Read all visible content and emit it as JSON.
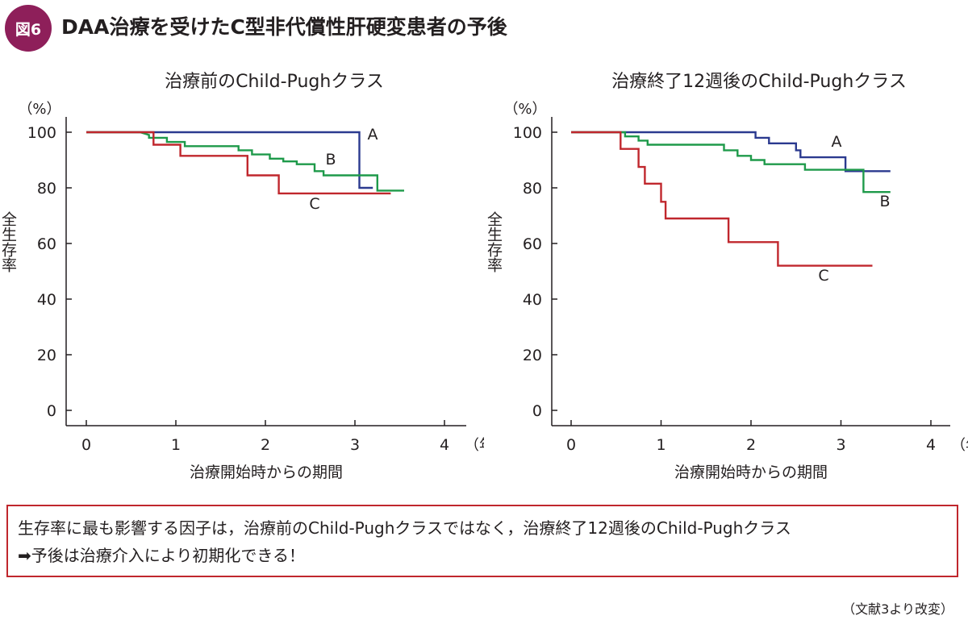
{
  "figure": {
    "badge": "図6",
    "title": "DAA治療を受けたC型非代償性肝硬変患者の予後"
  },
  "note": {
    "line1": "生存率に最も影響する因子は，治療前のChild-Pughクラスではなく，治療終了12週後のChild-Pughクラス",
    "line2": "➡予後は治療介入により初期化できる！"
  },
  "source": "（文献3より改変）",
  "colors": {
    "A": "#2b3a8f",
    "B": "#1e9a4a",
    "C": "#c0272d",
    "badge": "#8e1f5a"
  },
  "chart_data": [
    {
      "type": "line",
      "title": "治療前のChild-Pughクラス",
      "ylabel": "全生存率",
      "yunit": "（%）",
      "xlabel": "治療開始時からの期間",
      "xunit": "（年）",
      "xlim": [
        0,
        4
      ],
      "ylim": [
        0,
        100
      ],
      "xticks": [
        "0",
        "1",
        "2",
        "3",
        "4"
      ],
      "yticks": [
        "0",
        "20",
        "40",
        "60",
        "80",
        "100"
      ],
      "series": [
        {
          "name": "A",
          "x": [
            0,
            3.05,
            3.05,
            3.2
          ],
          "y": [
            100,
            100,
            80,
            80
          ]
        },
        {
          "name": "B",
          "x": [
            0,
            0.6,
            0.7,
            0.7,
            0.9,
            0.9,
            1.1,
            1.1,
            1.7,
            1.7,
            1.85,
            1.85,
            2.05,
            2.05,
            2.2,
            2.2,
            2.35,
            2.35,
            2.55,
            2.55,
            2.65,
            2.65,
            3.25,
            3.25,
            3.55
          ],
          "y": [
            100,
            100,
            99,
            98,
            98,
            96.5,
            96.5,
            95,
            95,
            93.5,
            93.5,
            92,
            92,
            90.5,
            90.5,
            89.5,
            89.5,
            88.5,
            88.5,
            86,
            86,
            84.5,
            84.5,
            79,
            79
          ]
        },
        {
          "name": "C",
          "x": [
            0,
            0.75,
            0.75,
            1.05,
            1.05,
            1.8,
            1.8,
            2.15,
            2.15,
            3.4
          ],
          "y": [
            100,
            100,
            95.5,
            95.5,
            91.5,
            91.5,
            84.5,
            84.5,
            78,
            78
          ]
        }
      ]
    },
    {
      "type": "line",
      "title": "治療終了12週後のChild-Pughクラス",
      "ylabel": "全生存率",
      "yunit": "（%）",
      "xlabel": "治療開始時からの期間",
      "xunit": "（年）",
      "xlim": [
        0,
        4
      ],
      "ylim": [
        0,
        100
      ],
      "xticks": [
        "0",
        "1",
        "2",
        "3",
        "4"
      ],
      "yticks": [
        "0",
        "20",
        "40",
        "60",
        "80",
        "100"
      ],
      "series": [
        {
          "name": "A",
          "x": [
            0,
            2.05,
            2.05,
            2.2,
            2.2,
            2.5,
            2.5,
            2.55,
            2.55,
            3.05,
            3.05,
            3.55
          ],
          "y": [
            100,
            100,
            98,
            98,
            96,
            96,
            93.5,
            93.5,
            91,
            91,
            86,
            86
          ]
        },
        {
          "name": "B",
          "x": [
            0,
            0.6,
            0.6,
            0.75,
            0.75,
            0.85,
            0.85,
            1.7,
            1.7,
            1.85,
            1.85,
            2.0,
            2.0,
            2.15,
            2.15,
            2.6,
            2.6,
            3.25,
            3.25,
            3.55
          ],
          "y": [
            100,
            100,
            98.5,
            98.5,
            97,
            97,
            95.5,
            95.5,
            93.5,
            93.5,
            91.5,
            91.5,
            90,
            90,
            88.5,
            88.5,
            86.5,
            86.5,
            78.5,
            78.5
          ]
        },
        {
          "name": "C",
          "x": [
            0,
            0.55,
            0.55,
            0.75,
            0.75,
            0.82,
            0.82,
            1.0,
            1.0,
            1.05,
            1.05,
            1.75,
            1.75,
            2.3,
            2.3,
            3.35
          ],
          "y": [
            100,
            100,
            94,
            94,
            87.5,
            87.5,
            81.5,
            81.5,
            75,
            75,
            69,
            69,
            60.5,
            60.5,
            52,
            52
          ]
        }
      ]
    }
  ]
}
